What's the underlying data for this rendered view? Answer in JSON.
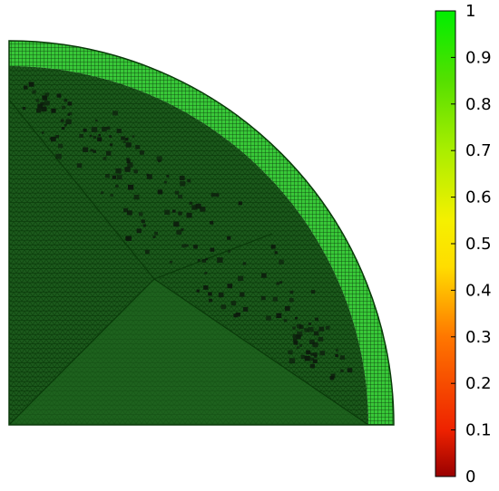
{
  "colorbar": {
    "ticks": [
      {
        "label": "1",
        "value": 1.0
      },
      {
        "label": "0.9",
        "value": 0.9
      },
      {
        "label": "0.8",
        "value": 0.8
      },
      {
        "label": "0.7",
        "value": 0.7
      },
      {
        "label": "0.6",
        "value": 0.6
      },
      {
        "label": "0.5",
        "value": 0.5
      },
      {
        "label": "0.4",
        "value": 0.4
      },
      {
        "label": "0.3",
        "value": 0.3
      },
      {
        "label": "0.2",
        "value": 0.2
      },
      {
        "label": "0.1",
        "value": 0.1
      },
      {
        "label": "0",
        "value": 0.0
      }
    ],
    "range": [
      0,
      1
    ],
    "gradient_stops": [
      {
        "value": 0.0,
        "color": "#990000"
      },
      {
        "value": 0.1,
        "color": "#ee2200"
      },
      {
        "value": 0.3,
        "color": "#ff7700"
      },
      {
        "value": 0.45,
        "color": "#ffdd00"
      },
      {
        "value": 0.55,
        "color": "#f5f000"
      },
      {
        "value": 0.7,
        "color": "#aaee00"
      },
      {
        "value": 0.85,
        "color": "#55e000"
      },
      {
        "value": 1.0,
        "color": "#00ee00"
      }
    ]
  },
  "mesh": {
    "outer_ring_color": "#38c838",
    "inner_region_color": "#1c5a1c",
    "core_region_color": "#206a20",
    "grid_line_color": "#0a3a0a",
    "edge_color": "#0b3b0b",
    "dark_cell_color": "#0c1a0c"
  }
}
